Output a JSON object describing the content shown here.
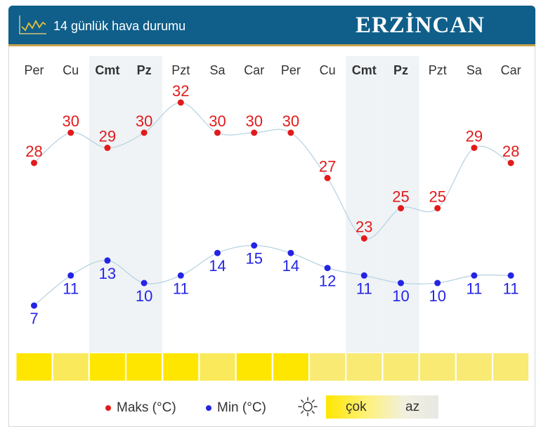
{
  "header": {
    "title": "14 günlük hava durumu",
    "city": "ERZİNCAN"
  },
  "chart_data": {
    "type": "line",
    "days": [
      "Per",
      "Cu",
      "Cmt",
      "Pz",
      "Pzt",
      "Sa",
      "Car",
      "Per",
      "Cu",
      "Cmt",
      "Pz",
      "Pzt",
      "Sa",
      "Car"
    ],
    "weekend": [
      false,
      false,
      true,
      true,
      false,
      false,
      false,
      false,
      false,
      true,
      true,
      false,
      false,
      false
    ],
    "series": [
      {
        "name": "Maks (°C)",
        "color": "#e21a1a",
        "values": [
          28,
          30,
          29,
          30,
          32,
          30,
          30,
          30,
          27,
          23,
          25,
          25,
          29,
          28
        ]
      },
      {
        "name": "Min (°C)",
        "color": "#2424e6",
        "values": [
          7,
          11,
          13,
          10,
          11,
          14,
          15,
          14,
          12,
          11,
          10,
          10,
          11,
          11
        ]
      }
    ],
    "sunshine": {
      "levels": [
        1,
        0.45,
        1,
        1,
        1,
        0.45,
        1,
        1,
        0.3,
        0.3,
        0.3,
        0.3,
        0.3,
        0.3
      ],
      "scale_labels": [
        "çok",
        "az"
      ]
    }
  },
  "legend": {
    "max_label": "Maks (°C)",
    "min_label": "Min (°C)",
    "sun_icon": "sun-icon"
  }
}
